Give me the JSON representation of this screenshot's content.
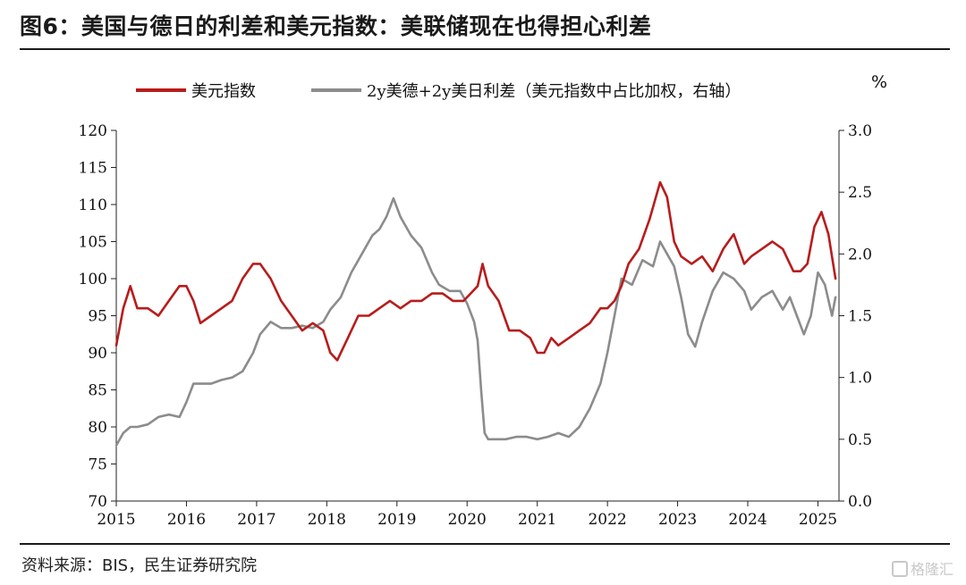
{
  "header": {
    "title": "图6：美国与德日的利差和美元指数：美联储现在也得担心利差"
  },
  "footer": {
    "source": "资料来源：BIS，民生证券研究院",
    "watermark": "格隆汇"
  },
  "chart_data": {
    "type": "line",
    "right_axis_unit": "%",
    "x_ticks": [
      "2015",
      "2016",
      "2017",
      "2018",
      "2019",
      "2020",
      "2021",
      "2022",
      "2023",
      "2024",
      "2025"
    ],
    "left_axis": {
      "ylim": [
        70,
        120
      ],
      "ticks": [
        "70",
        "75",
        "80",
        "85",
        "90",
        "95",
        "100",
        "105",
        "110",
        "115",
        "120"
      ]
    },
    "right_axis": {
      "ylim": [
        0.0,
        3.0
      ],
      "ticks": [
        "0.0",
        "0.5",
        "1.0",
        "1.5",
        "2.0",
        "2.5",
        "3.0"
      ]
    },
    "legend_position": "top",
    "grid": false,
    "series": [
      {
        "name": "美元指数",
        "axis": "left",
        "color": "#b81c1c",
        "x": [
          2015.0,
          2015.1,
          2015.2,
          2015.3,
          2015.45,
          2015.6,
          2015.75,
          2015.9,
          2016.0,
          2016.1,
          2016.2,
          2016.35,
          2016.5,
          2016.65,
          2016.8,
          2016.95,
          2017.05,
          2017.2,
          2017.35,
          2017.5,
          2017.65,
          2017.8,
          2017.95,
          2018.05,
          2018.15,
          2018.3,
          2018.45,
          2018.6,
          2018.75,
          2018.9,
          2019.05,
          2019.2,
          2019.35,
          2019.5,
          2019.65,
          2019.8,
          2019.95,
          2020.05,
          2020.15,
          2020.22,
          2020.3,
          2020.45,
          2020.6,
          2020.75,
          2020.9,
          2021.0,
          2021.1,
          2021.2,
          2021.3,
          2021.45,
          2021.6,
          2021.75,
          2021.9,
          2022.0,
          2022.1,
          2022.2,
          2022.3,
          2022.45,
          2022.6,
          2022.75,
          2022.85,
          2022.95,
          2023.05,
          2023.2,
          2023.35,
          2023.5,
          2023.65,
          2023.8,
          2023.95,
          2024.05,
          2024.2,
          2024.35,
          2024.5,
          2024.65,
          2024.75,
          2024.85,
          2024.95,
          2025.05,
          2025.15,
          2025.25
        ],
        "values": [
          91,
          96,
          99,
          96,
          96,
          95,
          97,
          99,
          99,
          97,
          94,
          95,
          96,
          97,
          100,
          102,
          102,
          100,
          97,
          95,
          93,
          94,
          93,
          90,
          89,
          92,
          95,
          95,
          96,
          97,
          96,
          97,
          97,
          98,
          98,
          97,
          97,
          98,
          99,
          102,
          99,
          97,
          93,
          93,
          92,
          90,
          90,
          92,
          91,
          92,
          93,
          94,
          96,
          96,
          97,
          99,
          102,
          104,
          108,
          113,
          111,
          105,
          103,
          102,
          103,
          101,
          104,
          106,
          102,
          103,
          104,
          105,
          104,
          101,
          101,
          102,
          107,
          109,
          106,
          100
        ]
      },
      {
        "name": "2y美德+2y美日利差（美元指数中占比加权，右轴）",
        "axis": "right",
        "color": "#8c8c8c",
        "x": [
          2015.0,
          2015.1,
          2015.2,
          2015.3,
          2015.45,
          2015.6,
          2015.75,
          2015.9,
          2016.0,
          2016.1,
          2016.2,
          2016.35,
          2016.5,
          2016.65,
          2016.8,
          2016.95,
          2017.05,
          2017.2,
          2017.35,
          2017.5,
          2017.65,
          2017.8,
          2017.95,
          2018.05,
          2018.2,
          2018.35,
          2018.5,
          2018.65,
          2018.75,
          2018.85,
          2018.95,
          2019.05,
          2019.2,
          2019.35,
          2019.5,
          2019.6,
          2019.75,
          2019.9,
          2020.0,
          2020.1,
          2020.15,
          2020.2,
          2020.25,
          2020.3,
          2020.4,
          2020.55,
          2020.7,
          2020.85,
          2021.0,
          2021.15,
          2021.3,
          2021.45,
          2021.6,
          2021.75,
          2021.9,
          2022.0,
          2022.1,
          2022.2,
          2022.35,
          2022.5,
          2022.65,
          2022.75,
          2022.85,
          2022.95,
          2023.05,
          2023.15,
          2023.25,
          2023.35,
          2023.5,
          2023.65,
          2023.8,
          2023.95,
          2024.05,
          2024.2,
          2024.35,
          2024.5,
          2024.6,
          2024.7,
          2024.8,
          2024.9,
          2025.0,
          2025.1,
          2025.2,
          2025.25
        ],
        "values": [
          0.45,
          0.55,
          0.6,
          0.6,
          0.62,
          0.68,
          0.7,
          0.68,
          0.8,
          0.95,
          0.95,
          0.95,
          0.98,
          1.0,
          1.05,
          1.2,
          1.35,
          1.45,
          1.4,
          1.4,
          1.42,
          1.4,
          1.45,
          1.55,
          1.65,
          1.85,
          2.0,
          2.15,
          2.2,
          2.3,
          2.45,
          2.3,
          2.15,
          2.05,
          1.85,
          1.75,
          1.7,
          1.7,
          1.6,
          1.45,
          1.3,
          0.9,
          0.55,
          0.5,
          0.5,
          0.5,
          0.52,
          0.52,
          0.5,
          0.52,
          0.55,
          0.52,
          0.6,
          0.75,
          0.95,
          1.2,
          1.5,
          1.8,
          1.75,
          1.95,
          1.9,
          2.1,
          2.0,
          1.9,
          1.65,
          1.35,
          1.25,
          1.45,
          1.7,
          1.85,
          1.8,
          1.7,
          1.55,
          1.65,
          1.7,
          1.55,
          1.65,
          1.5,
          1.35,
          1.5,
          1.85,
          1.75,
          1.5,
          1.65
        ]
      }
    ]
  }
}
